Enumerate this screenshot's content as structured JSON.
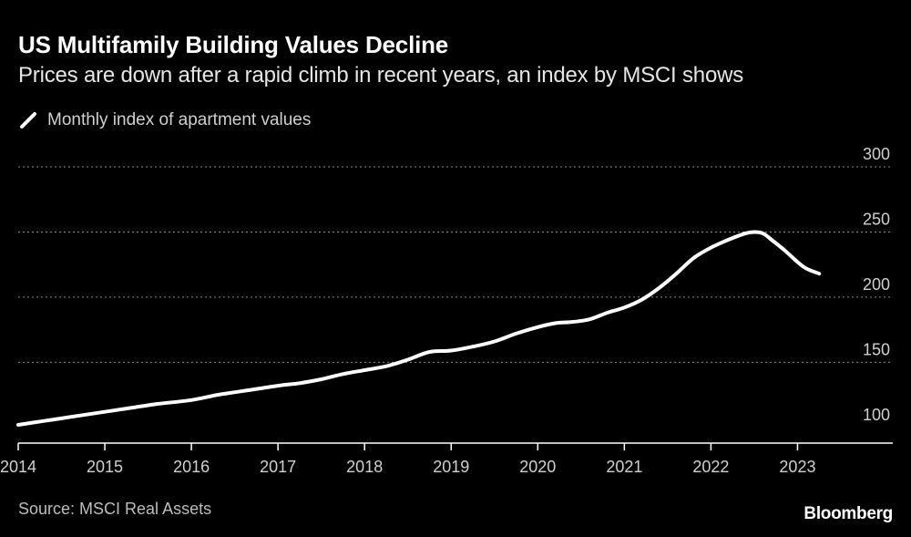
{
  "header": {
    "title": "US Multifamily Building Values Decline",
    "subtitle": "Prices are down after a rapid climb in recent years, an index by MSCI shows"
  },
  "legend": {
    "label": "Monthly index of apartment values",
    "icon": "diagonal-line-icon"
  },
  "footer": {
    "source": "Source: MSCI Real Assets",
    "brand": "Bloomberg"
  },
  "colors": {
    "background": "#000000",
    "line": "#ffffff",
    "grid": "#8a8a8a",
    "axis": "#ffffff"
  },
  "chart_data": {
    "type": "line",
    "title": "US Multifamily Building Values Decline",
    "xlabel": "",
    "ylabel": "",
    "xlim": [
      2014,
      2024.1
    ],
    "ylim": [
      88,
      300
    ],
    "xticks": [
      2014,
      2015,
      2016,
      2017,
      2018,
      2019,
      2020,
      2021,
      2022,
      2023
    ],
    "xtick_labels": [
      "2014",
      "2015",
      "2016",
      "2017",
      "2018",
      "2019",
      "2020",
      "2021",
      "2022",
      "2023"
    ],
    "yticks": [
      100,
      150,
      200,
      250,
      300
    ],
    "ytick_labels": [
      "100",
      "150",
      "200",
      "250",
      "300"
    ],
    "grid": "horizontal dotted",
    "legend_position": "top-left",
    "series": [
      {
        "name": "Monthly index of apartment values",
        "x": [
          2014.0,
          2014.3,
          2014.6,
          2015.0,
          2015.3,
          2015.6,
          2016.0,
          2016.3,
          2016.6,
          2017.0,
          2017.25,
          2017.5,
          2017.75,
          2018.0,
          2018.25,
          2018.5,
          2018.75,
          2019.0,
          2019.25,
          2019.5,
          2019.75,
          2020.0,
          2020.2,
          2020.4,
          2020.6,
          2020.8,
          2021.0,
          2021.2,
          2021.4,
          2021.6,
          2021.8,
          2022.0,
          2022.2,
          2022.4,
          2022.5,
          2022.6,
          2022.7,
          2022.85,
          2023.0,
          2023.1,
          2023.25
        ],
        "values": [
          102,
          105,
          108,
          112,
          115,
          118,
          121,
          125,
          128,
          132,
          134,
          137,
          141,
          144,
          147,
          152,
          158,
          159,
          162,
          166,
          172,
          177,
          180,
          181,
          183,
          188,
          192,
          198,
          207,
          218,
          230,
          238,
          244,
          249,
          250,
          249,
          244,
          236,
          227,
          222,
          218
        ]
      }
    ]
  }
}
